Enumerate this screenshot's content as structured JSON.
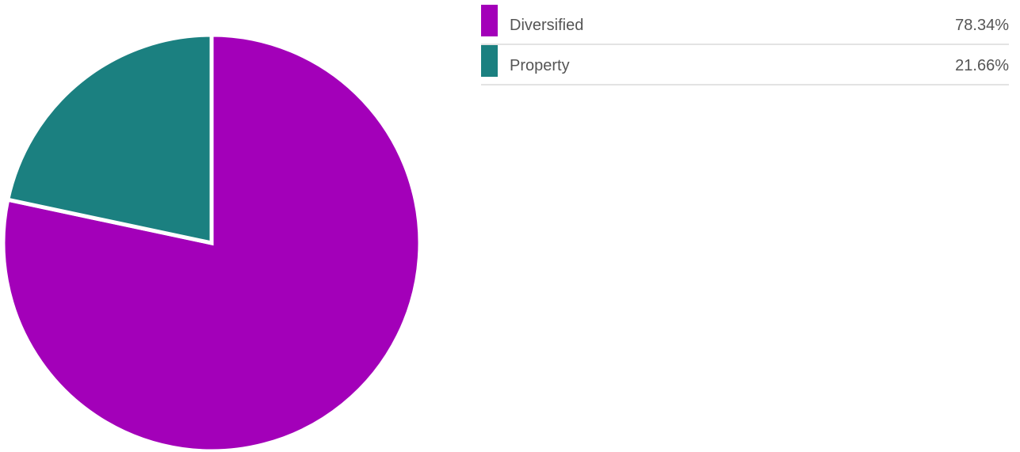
{
  "chart_data": {
    "type": "pie",
    "slices": [
      {
        "label": "Diversified",
        "value": 78.34,
        "display": "78.34%",
        "color": "#a300b9"
      },
      {
        "label": "Property",
        "value": 21.66,
        "display": "21.66%",
        "color": "#1b8080"
      }
    ],
    "start_angle": "12 o'clock",
    "direction": "clockwise",
    "legend_position": "right"
  }
}
